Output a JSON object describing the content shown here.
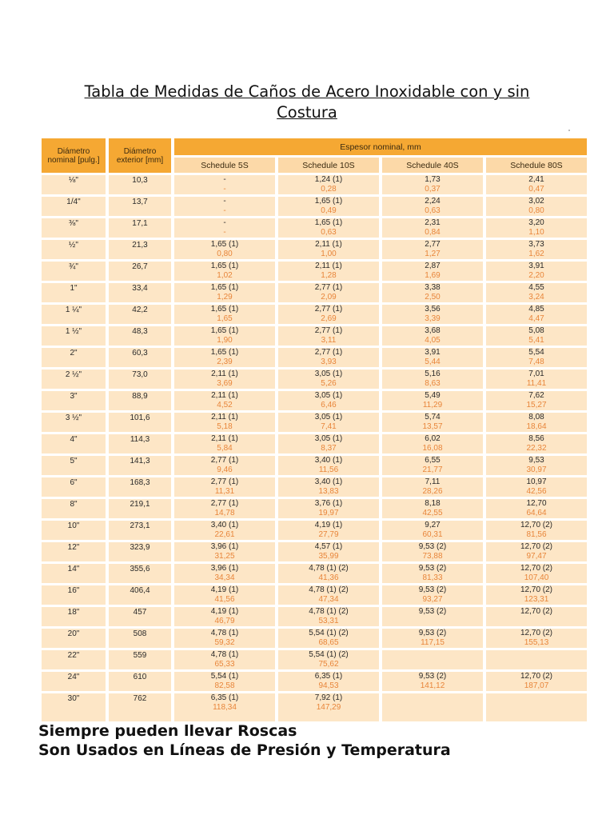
{
  "title": {
    "line1": "Tabla de Medidas de Caños de Acero Inoxidable con y sin",
    "line2": "Costura"
  },
  "table": {
    "headers": {
      "nominal": "Diámetro nominal [pulg.]",
      "exterior": "Diámetro exterior [mm]",
      "espesor": "Espesor nominal, mm",
      "schedules": [
        "Schedule 5S",
        "Schedule 10S",
        "Schedule 40S",
        "Schedule 80S"
      ]
    },
    "rows": [
      {
        "nominal": "⅛\"",
        "exterior": "10,3",
        "cells": [
          [
            "-",
            "-"
          ],
          [
            "1,24 (1)",
            "0,28"
          ],
          [
            "1,73",
            "0,37"
          ],
          [
            "2,41",
            "0,47"
          ]
        ]
      },
      {
        "nominal": "1/4\"",
        "exterior": "13,7",
        "cells": [
          [
            "-",
            "-"
          ],
          [
            "1,65 (1)",
            "0,49"
          ],
          [
            "2,24",
            "0,63"
          ],
          [
            "3,02",
            "0,80"
          ]
        ]
      },
      {
        "nominal": "⅜\"",
        "exterior": "17,1",
        "cells": [
          [
            "-",
            "-"
          ],
          [
            "1,65 (1)",
            "0,63"
          ],
          [
            "2,31",
            "0,84"
          ],
          [
            "3,20",
            "1,10"
          ]
        ]
      },
      {
        "nominal": "½\"",
        "exterior": "21,3",
        "cells": [
          [
            "1,65 (1)",
            "0,80"
          ],
          [
            "2,11 (1)",
            "1,00"
          ],
          [
            "2,77",
            "1,27"
          ],
          [
            "3,73",
            "1,62"
          ]
        ]
      },
      {
        "nominal": "¾\"",
        "exterior": "26,7",
        "cells": [
          [
            "1,65 (1)",
            "1,02"
          ],
          [
            "2,11 (1)",
            "1,28"
          ],
          [
            "2,87",
            "1,69"
          ],
          [
            "3,91",
            "2,20"
          ]
        ]
      },
      {
        "nominal": "1\"",
        "exterior": "33,4",
        "cells": [
          [
            "1,65 (1)",
            "1,29"
          ],
          [
            "2,77 (1)",
            "2,09"
          ],
          [
            "3,38",
            "2,50"
          ],
          [
            "4,55",
            "3,24"
          ]
        ]
      },
      {
        "nominal": "1 ¼\"",
        "exterior": "42,2",
        "cells": [
          [
            "1,65 (1)",
            "1,65"
          ],
          [
            "2,77 (1)",
            "2,69"
          ],
          [
            "3,56",
            "3,39"
          ],
          [
            "4,85",
            "4,47"
          ]
        ]
      },
      {
        "nominal": "1 ½\"",
        "exterior": "48,3",
        "cells": [
          [
            "1,65 (1)",
            "1,90"
          ],
          [
            "2,77 (1)",
            "3,11"
          ],
          [
            "3,68",
            "4,05"
          ],
          [
            "5,08",
            "5,41"
          ]
        ]
      },
      {
        "nominal": "2\"",
        "exterior": "60,3",
        "cells": [
          [
            "1,65 (1)",
            "2,39"
          ],
          [
            "2,77 (1)",
            "3,93"
          ],
          [
            "3,91",
            "5,44"
          ],
          [
            "5,54",
            "7,48"
          ]
        ]
      },
      {
        "nominal": "2 ½\"",
        "exterior": "73,0",
        "cells": [
          [
            "2,11 (1)",
            "3,69"
          ],
          [
            "3,05 (1)",
            "5,26"
          ],
          [
            "5,16",
            "8,63"
          ],
          [
            "7,01",
            "11,41"
          ]
        ]
      },
      {
        "nominal": "3\"",
        "exterior": "88,9",
        "cells": [
          [
            "2,11 (1)",
            "4,52"
          ],
          [
            "3,05 (1)",
            "6,46"
          ],
          [
            "5,49",
            "11,29"
          ],
          [
            "7,62",
            "15,27"
          ]
        ]
      },
      {
        "nominal": "3 ½\"",
        "exterior": "101,6",
        "cells": [
          [
            "2,11 (1)",
            "5,18"
          ],
          [
            "3,05 (1)",
            "7,41"
          ],
          [
            "5,74",
            "13,57"
          ],
          [
            "8,08",
            "18,64"
          ]
        ]
      },
      {
        "nominal": "4\"",
        "exterior": "114,3",
        "cells": [
          [
            "2,11 (1)",
            "5,84"
          ],
          [
            "3,05 (1)",
            "8,37"
          ],
          [
            "6,02",
            "16,08"
          ],
          [
            "8,56",
            "22,32"
          ]
        ]
      },
      {
        "nominal": "5\"",
        "exterior": "141,3",
        "cells": [
          [
            "2,77 (1)",
            "9,46"
          ],
          [
            "3,40 (1)",
            "11,56"
          ],
          [
            "6,55",
            "21,77"
          ],
          [
            "9,53",
            "30,97"
          ]
        ]
      },
      {
        "nominal": "6\"",
        "exterior": "168,3",
        "cells": [
          [
            "2,77 (1)",
            "11,31"
          ],
          [
            "3,40 (1)",
            "13,83"
          ],
          [
            "7,11",
            "28,26"
          ],
          [
            "10,97",
            "42,56"
          ]
        ]
      },
      {
        "nominal": "8\"",
        "exterior": "219,1",
        "cells": [
          [
            "2,77 (1)",
            "14,78"
          ],
          [
            "3,76 (1)",
            "19,97"
          ],
          [
            "8,18",
            "42,55"
          ],
          [
            "12,70",
            "64,64"
          ]
        ]
      },
      {
        "nominal": "10\"",
        "exterior": "273,1",
        "cells": [
          [
            "3,40 (1)",
            "22,61"
          ],
          [
            "4,19 (1)",
            "27,79"
          ],
          [
            "9,27",
            "60,31"
          ],
          [
            "12,70 (2)",
            "81,56"
          ]
        ]
      },
      {
        "nominal": "12\"",
        "exterior": "323,9",
        "cells": [
          [
            "3,96 (1)",
            "31,25"
          ],
          [
            "4,57 (1)",
            "35,99"
          ],
          [
            "9,53 (2)",
            "73,88"
          ],
          [
            "12,70 (2)",
            "97,47"
          ]
        ]
      },
      {
        "nominal": "14\"",
        "exterior": "355,6",
        "cells": [
          [
            "3,96 (1)",
            "34,34"
          ],
          [
            "4,78 (1) (2)",
            "41,36"
          ],
          [
            "9,53 (2)",
            "81,33"
          ],
          [
            "12,70 (2)",
            "107,40"
          ]
        ]
      },
      {
        "nominal": "16\"",
        "exterior": "406,4",
        "cells": [
          [
            "4,19 (1)",
            "41,56"
          ],
          [
            "4,78 (1) (2)",
            "47,34"
          ],
          [
            "9,53 (2)",
            "93,27"
          ],
          [
            "12,70 (2)",
            "123,31"
          ]
        ]
      },
      {
        "nominal": "18\"",
        "exterior": "457",
        "cells": [
          [
            "4,19 (1)",
            "46,79"
          ],
          [
            "4,78 (1) (2)",
            "53,31"
          ],
          [
            "9,53 (2)",
            ""
          ],
          [
            "12,70 (2)",
            ""
          ]
        ]
      },
      {
        "nominal": "20\"",
        "exterior": "508",
        "cells": [
          [
            "4,78 (1)",
            "59,32"
          ],
          [
            "5,54 (1) (2)",
            "68,65"
          ],
          [
            "9,53 (2)",
            "117,15"
          ],
          [
            "12,70 (2)",
            "155,13"
          ]
        ]
      },
      {
        "nominal": "22\"",
        "exterior": "559",
        "cells": [
          [
            "4,78 (1)",
            "65,33"
          ],
          [
            "5,54 (1) (2)",
            "75,62"
          ],
          [
            "",
            ""
          ],
          [
            "",
            ""
          ]
        ]
      },
      {
        "nominal": "24\"",
        "exterior": "610",
        "cells": [
          [
            "5,54 (1)",
            "82,58"
          ],
          [
            "6,35 (1)",
            "94,53"
          ],
          [
            "9,53 (2)",
            "141,12"
          ],
          [
            "12,70 (2)",
            "187,07"
          ]
        ]
      },
      {
        "nominal": "30\"",
        "exterior": "762",
        "cells": [
          [
            "6,35 (1)",
            "118,34"
          ],
          [
            "7,92 (1)",
            "147,29"
          ],
          [
            "",
            ""
          ],
          [
            "",
            ""
          ]
        ]
      }
    ]
  },
  "footer": {
    "line1": "Siempre pueden llevar Roscas",
    "line2": "Son Usados en Líneas de Presión y Temperatura"
  },
  "colors": {
    "header_dark": "#f5a833",
    "header_light": "#fcd9a8",
    "body": "#fde6c6",
    "secondary_value": "#e8853a"
  }
}
